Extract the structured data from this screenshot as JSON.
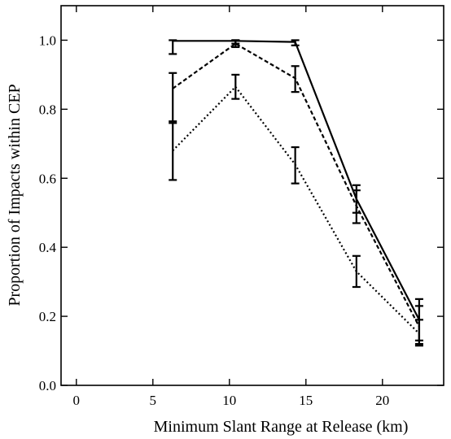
{
  "chart_data": {
    "type": "line",
    "title": "",
    "xlabel": "Minimum Slant Range at Release (km)",
    "ylabel": "Proportion of Impacts within CEP",
    "xlim": [
      -1,
      24
    ],
    "ylim": [
      0,
      1.1
    ],
    "xticks": [
      0,
      5,
      10,
      15,
      20
    ],
    "yticks": [
      0.0,
      0.2,
      0.4,
      0.6,
      0.8,
      1.0
    ],
    "xtick_labels": [
      "0",
      "5",
      "10",
      "15",
      "20"
    ],
    "ytick_labels": [
      "0.0",
      "0.2",
      "0.4",
      "0.6",
      "0.8",
      "1.0"
    ],
    "grid": false,
    "legend": "none",
    "series": [
      {
        "style": "solid",
        "x": [
          6.3,
          10.4,
          14.3,
          18.3,
          22.4
        ],
        "y": [
          0.998,
          0.998,
          0.995,
          0.54,
          0.19
        ],
        "err_low": [
          0.96,
          0.99,
          0.985,
          0.5,
          0.13
        ],
        "err_high": [
          1.0,
          1.0,
          1.0,
          0.58,
          0.25
        ]
      },
      {
        "style": "dashed",
        "x": [
          6.3,
          10.4,
          14.3,
          18.3,
          22.4
        ],
        "y": [
          0.86,
          0.99,
          0.89,
          0.52,
          0.17
        ],
        "err_low": [
          0.76,
          0.98,
          0.85,
          0.47,
          0.12
        ],
        "err_high": [
          0.905,
          1.0,
          0.925,
          0.565,
          0.23
        ]
      },
      {
        "style": "dotted",
        "x": [
          6.3,
          10.4,
          14.3,
          18.3,
          22.4
        ],
        "y": [
          0.68,
          0.865,
          0.64,
          0.33,
          0.15
        ],
        "err_low": [
          0.595,
          0.83,
          0.585,
          0.285,
          0.115
        ],
        "err_high": [
          0.765,
          0.9,
          0.69,
          0.375,
          0.19
        ]
      }
    ]
  }
}
